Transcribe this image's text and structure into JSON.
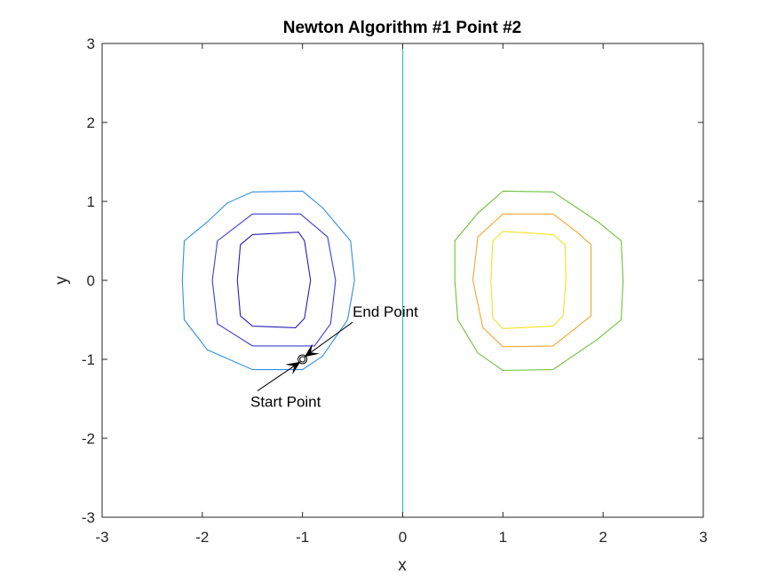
{
  "chart_data": {
    "type": "contour",
    "title": "Newton Algorithm #1 Point #2",
    "xlabel": "x",
    "ylabel": "y",
    "xlim": [
      -3,
      3
    ],
    "ylim": [
      -3,
      3
    ],
    "xticks": [
      -3,
      -2,
      -1,
      0,
      1,
      2,
      3
    ],
    "yticks": [
      -3,
      -2,
      -1,
      0,
      1,
      2,
      3
    ],
    "grid": false,
    "series": [
      {
        "color": "#2c1eb6",
        "points": [
          [
            -1.5,
            0.58
          ],
          [
            -1.04,
            0.61
          ],
          [
            -0.98,
            0.5
          ],
          [
            -0.92,
            0.0
          ],
          [
            -0.98,
            -0.48
          ],
          [
            -1.07,
            -0.6
          ],
          [
            -1.5,
            -0.58
          ],
          [
            -1.62,
            -0.45
          ],
          [
            -1.65,
            0.0
          ],
          [
            -1.62,
            0.45
          ]
        ]
      },
      {
        "color": "#3b3fd6",
        "points": [
          [
            -1.5,
            0.84
          ],
          [
            -1.02,
            0.84
          ],
          [
            -0.75,
            0.55
          ],
          [
            -0.67,
            0.0
          ],
          [
            -0.72,
            -0.55
          ],
          [
            -0.88,
            -0.83
          ],
          [
            -1.5,
            -0.83
          ],
          [
            -1.85,
            -0.55
          ],
          [
            -1.9,
            0.0
          ],
          [
            -1.85,
            0.5
          ]
        ]
      },
      {
        "color": "#2f8fe0",
        "points": [
          [
            -1.5,
            1.12
          ],
          [
            -1.0,
            1.13
          ],
          [
            -0.8,
            0.92
          ],
          [
            -0.52,
            0.5
          ],
          [
            -0.48,
            0.0
          ],
          [
            -0.55,
            -0.5
          ],
          [
            -0.8,
            -0.96
          ],
          [
            -1.0,
            -1.13
          ],
          [
            -1.5,
            -1.13
          ],
          [
            -1.95,
            -0.88
          ],
          [
            -2.18,
            -0.5
          ],
          [
            -2.2,
            0.0
          ],
          [
            -2.18,
            0.5
          ],
          [
            -1.95,
            0.74
          ],
          [
            -1.75,
            0.98
          ]
        ]
      },
      {
        "color": "#1fc0be",
        "points": [
          [
            0.0,
            3.0
          ],
          [
            0.0,
            -3.0
          ]
        ],
        "closed": false
      },
      {
        "color": "#6cc23a",
        "points": [
          [
            1.0,
            1.13
          ],
          [
            1.5,
            1.12
          ],
          [
            1.95,
            0.74
          ],
          [
            2.18,
            0.5
          ],
          [
            2.2,
            0.0
          ],
          [
            2.18,
            -0.5
          ],
          [
            1.95,
            -0.74
          ],
          [
            1.5,
            -1.13
          ],
          [
            1.0,
            -1.14
          ],
          [
            0.75,
            -0.92
          ],
          [
            0.55,
            -0.5
          ],
          [
            0.52,
            0.0
          ],
          [
            0.52,
            0.5
          ],
          [
            0.75,
            0.85
          ]
        ]
      },
      {
        "color": "#f2a52e",
        "points": [
          [
            1.0,
            0.84
          ],
          [
            1.5,
            0.84
          ],
          [
            1.75,
            0.6
          ],
          [
            1.88,
            0.45
          ],
          [
            1.88,
            -0.45
          ],
          [
            1.5,
            -0.83
          ],
          [
            1.0,
            -0.84
          ],
          [
            0.8,
            -0.6
          ],
          [
            0.7,
            0.0
          ],
          [
            0.75,
            0.55
          ]
        ]
      },
      {
        "color": "#f5e024",
        "points": [
          [
            1.0,
            0.62
          ],
          [
            1.5,
            0.58
          ],
          [
            1.62,
            0.45
          ],
          [
            1.63,
            0.0
          ],
          [
            1.6,
            -0.45
          ],
          [
            1.5,
            -0.58
          ],
          [
            1.0,
            -0.61
          ],
          [
            0.9,
            -0.48
          ],
          [
            0.88,
            0.0
          ],
          [
            0.9,
            0.5
          ]
        ]
      }
    ],
    "start_point": [
      -1.0,
      -1.0
    ],
    "end_point": [
      -1.0,
      -1.0
    ],
    "annotations": [
      {
        "text": "End Point",
        "text_at": [
          -0.5,
          -0.46
        ],
        "arrow_from": [
          -0.5,
          -0.53
        ],
        "arrow_to": [
          -0.98,
          -0.97
        ]
      },
      {
        "text": "Start Point",
        "text_at": [
          -1.52,
          -1.6
        ],
        "arrow_from": [
          -1.45,
          -1.4
        ],
        "arrow_to": [
          -1.02,
          -1.03
        ]
      }
    ]
  }
}
